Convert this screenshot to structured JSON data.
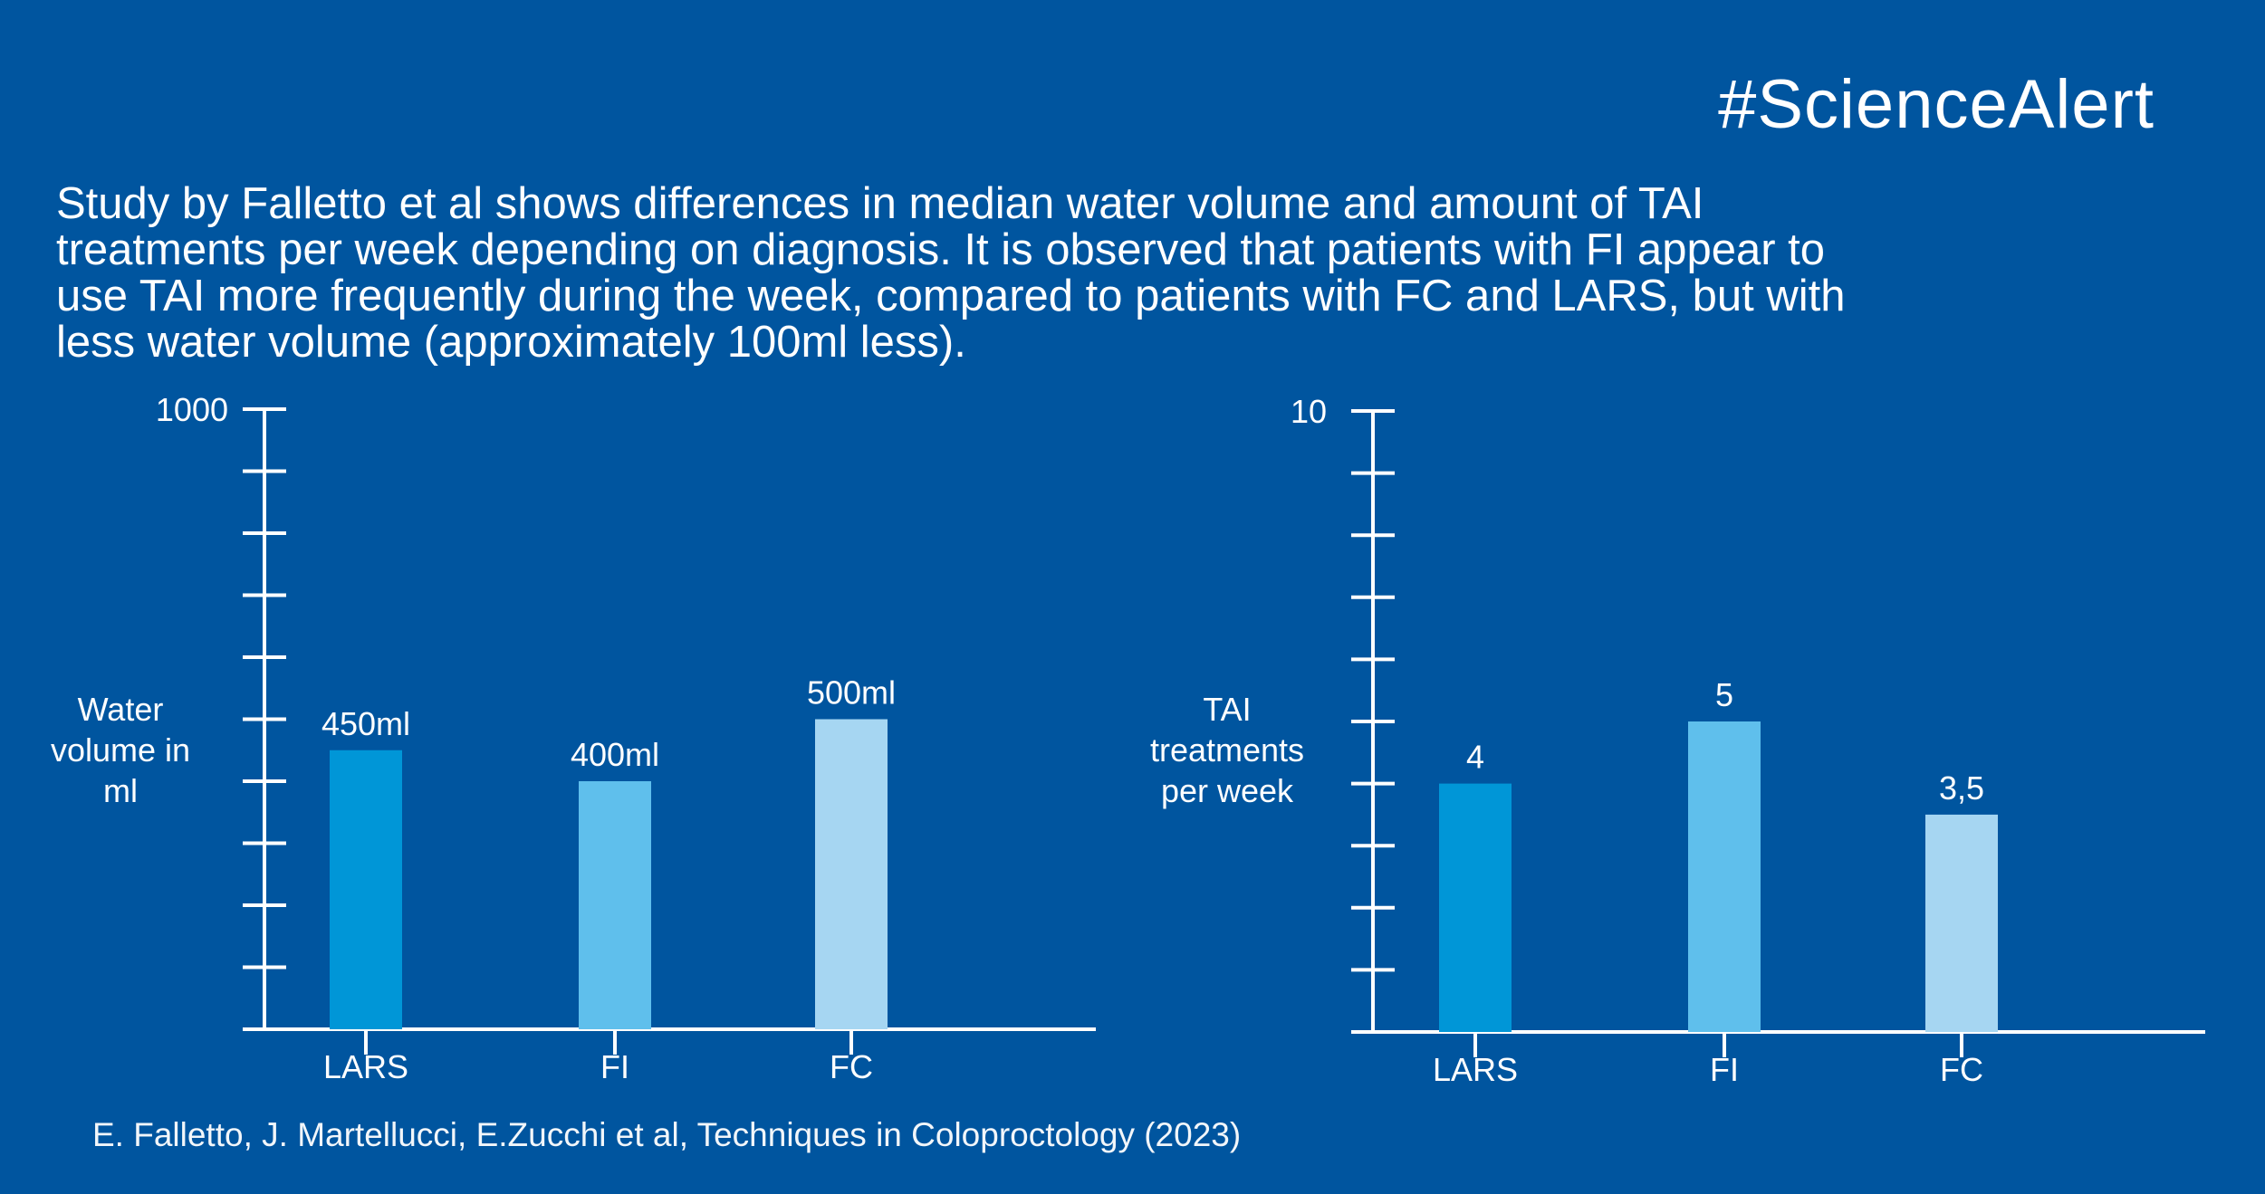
{
  "header": {
    "hashtag": "#ScienceAlert"
  },
  "description": {
    "lines": [
      "Study by Falletto et al shows differences in median water volume and amount of TAI",
      "treatments per week depending on diagnosis. It is observed that patients with FI appear to",
      "use TAI more frequently during the week, compared to patients with FC and LARS, but with",
      "less water volume (approximately 100ml less)."
    ]
  },
  "footer": {
    "citation": "E. Falletto, J. Martellucci, E.Zucchi et al, Techniques in Coloproctology (2023)"
  },
  "colors": {
    "background": "#00559f",
    "axis": "#ffffff",
    "bar_LARS": "#0096d7",
    "bar_FI": "#5fbfec",
    "bar_FC": "#a6d6f2"
  },
  "chart_data": [
    {
      "type": "bar",
      "categories": [
        "LARS",
        "FI",
        "FC"
      ],
      "values": [
        450,
        400,
        500
      ],
      "data_labels": [
        "450ml",
        "400ml",
        "500ml"
      ],
      "ylabel_lines": [
        "Water",
        "volume in",
        "ml"
      ],
      "ymax_label": "1000",
      "ylim": [
        0,
        1000
      ],
      "ytick_count": 10,
      "grid": false
    },
    {
      "type": "bar",
      "categories": [
        "LARS",
        "FI",
        "FC"
      ],
      "values": [
        4,
        5,
        3.5
      ],
      "data_labels": [
        "4",
        "5",
        "3,5"
      ],
      "ylabel_lines": [
        "TAI",
        "treatments",
        "per week"
      ],
      "ymax_label": "10",
      "ylim": [
        0,
        10
      ],
      "ytick_count": 10,
      "grid": false
    }
  ]
}
